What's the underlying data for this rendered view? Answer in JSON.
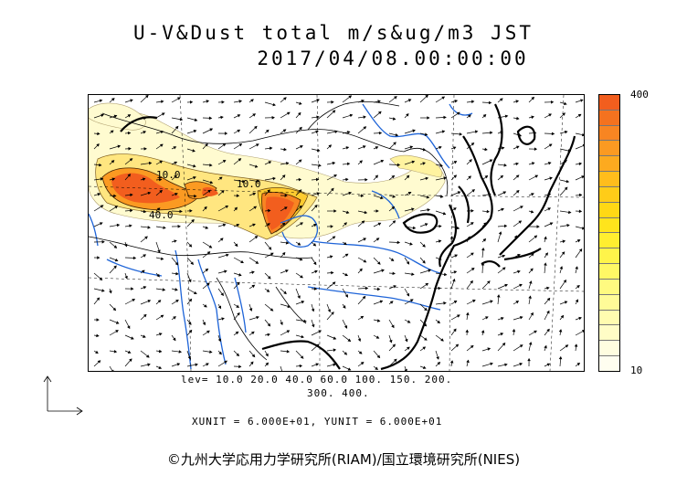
{
  "title": {
    "line1": "U-V&Dust total m/s&ug/m3 JST",
    "line2": "2017/04/08.00:00:00"
  },
  "colorbar": {
    "max_label": "400",
    "min_label": "10",
    "colors": [
      "#f25e1e",
      "#f4721f",
      "#f88522",
      "#fb9a22",
      "#fdaa1f",
      "#ffbd1c",
      "#ffcc18",
      "#ffd815",
      "#ffe41c",
      "#ffee30",
      "#fff44a",
      "#fff865",
      "#fffa80",
      "#fffb98",
      "#fffcb0",
      "#fffdc6",
      "#fffde0",
      "#fffef0"
    ]
  },
  "contour_labels": [
    "10.0",
    "40.0",
    "10.0"
  ],
  "levels": {
    "line1": "lev= 10.0 20.0 40.0 60.0 100. 150. 200.",
    "line2": "300. 400."
  },
  "units": "XUNIT = 6.000E+01, YUNIT = 6.000E+01",
  "copyright": "©九州大学応用力学研究所(RIAM)/国立環境研究所(NIES)",
  "map": {
    "coast_color": "#000000",
    "river_color": "#1e64d8",
    "border_color": "#000000",
    "dust_colors": {
      "low": "#fffbd0",
      "mid": "#ffe680",
      "high": "#ffb020",
      "max": "#f25e1e"
    }
  }
}
